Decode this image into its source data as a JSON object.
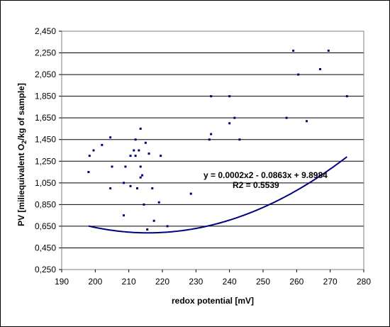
{
  "chart_data": {
    "type": "scatter",
    "title": "",
    "xlabel": "redox potential [mV]",
    "ylabel": {
      "before": "PV [miliequivalent O",
      "sub": "2",
      "after": "/kg of sample]"
    },
    "xlim": [
      190,
      280
    ],
    "ylim": [
      0.25,
      2.45
    ],
    "x_ticks": [
      190,
      200,
      210,
      220,
      230,
      240,
      250,
      260,
      270,
      280
    ],
    "x_tick_labels": [
      "190",
      "200",
      "210",
      "220",
      "230",
      "240",
      "250",
      "260",
      "270",
      "280"
    ],
    "y_ticks": [
      0.25,
      0.45,
      0.65,
      0.85,
      1.05,
      1.25,
      1.45,
      1.65,
      1.85,
      2.05,
      2.25,
      2.45
    ],
    "y_tick_labels": [
      "0,250",
      "0,450",
      "0,650",
      "0,850",
      "1,050",
      "1,250",
      "1,450",
      "1,650",
      "1,850",
      "2,050",
      "2,250",
      "2,450"
    ],
    "grid": "horizontal",
    "legend": "none",
    "colors": {
      "points": "#000080",
      "trend": "#000080",
      "grid": "#000000"
    },
    "series": [
      {
        "points": [
          [
            198,
            1.15
          ],
          [
            198.3,
            1.3
          ],
          [
            199.5,
            1.35
          ],
          [
            202,
            1.4
          ],
          [
            204.5,
            1.47
          ],
          [
            205,
            1.2
          ],
          [
            204.5,
            1.0
          ],
          [
            208.5,
            1.05
          ],
          [
            208.5,
            0.75
          ],
          [
            209,
            1.2
          ],
          [
            210.5,
            1.3
          ],
          [
            210.5,
            1.02
          ],
          [
            211.5,
            1.35
          ],
          [
            212,
            1.45
          ],
          [
            212,
            1.3
          ],
          [
            212.5,
            1.0
          ],
          [
            213,
            1.35
          ],
          [
            213.5,
            1.55
          ],
          [
            213.5,
            1.2
          ],
          [
            213.5,
            1.1
          ],
          [
            214,
            1.12
          ],
          [
            214.5,
            0.85
          ],
          [
            215,
            1.42
          ],
          [
            215.5,
            0.62
          ],
          [
            216,
            1.32
          ],
          [
            217,
            1.0
          ],
          [
            217.5,
            0.7
          ],
          [
            219,
            0.87
          ],
          [
            219.5,
            1.3
          ],
          [
            221.5,
            0.65
          ],
          [
            228.5,
            0.95
          ],
          [
            234,
            1.45
          ],
          [
            234.5,
            1.5
          ],
          [
            234.5,
            1.85
          ],
          [
            240,
            1.85
          ],
          [
            240,
            1.6
          ],
          [
            241.5,
            1.65
          ],
          [
            243,
            1.45
          ],
          [
            257,
            1.65
          ],
          [
            259,
            2.27
          ],
          [
            260.5,
            2.05
          ],
          [
            263,
            1.62
          ],
          [
            267,
            2.1
          ],
          [
            269.5,
            2.27
          ],
          [
            275,
            1.85
          ]
        ]
      }
    ],
    "trendline": {
      "type": "polynomial",
      "order": 2,
      "x_range": [
        198,
        275
      ],
      "coefficients": [
        0.0002,
        -0.0863,
        9.8984
      ],
      "equation_text": "y = 0.0002x2 - 0.0863x + 9.8984",
      "r2_text": "R2 = 0.5539"
    }
  }
}
